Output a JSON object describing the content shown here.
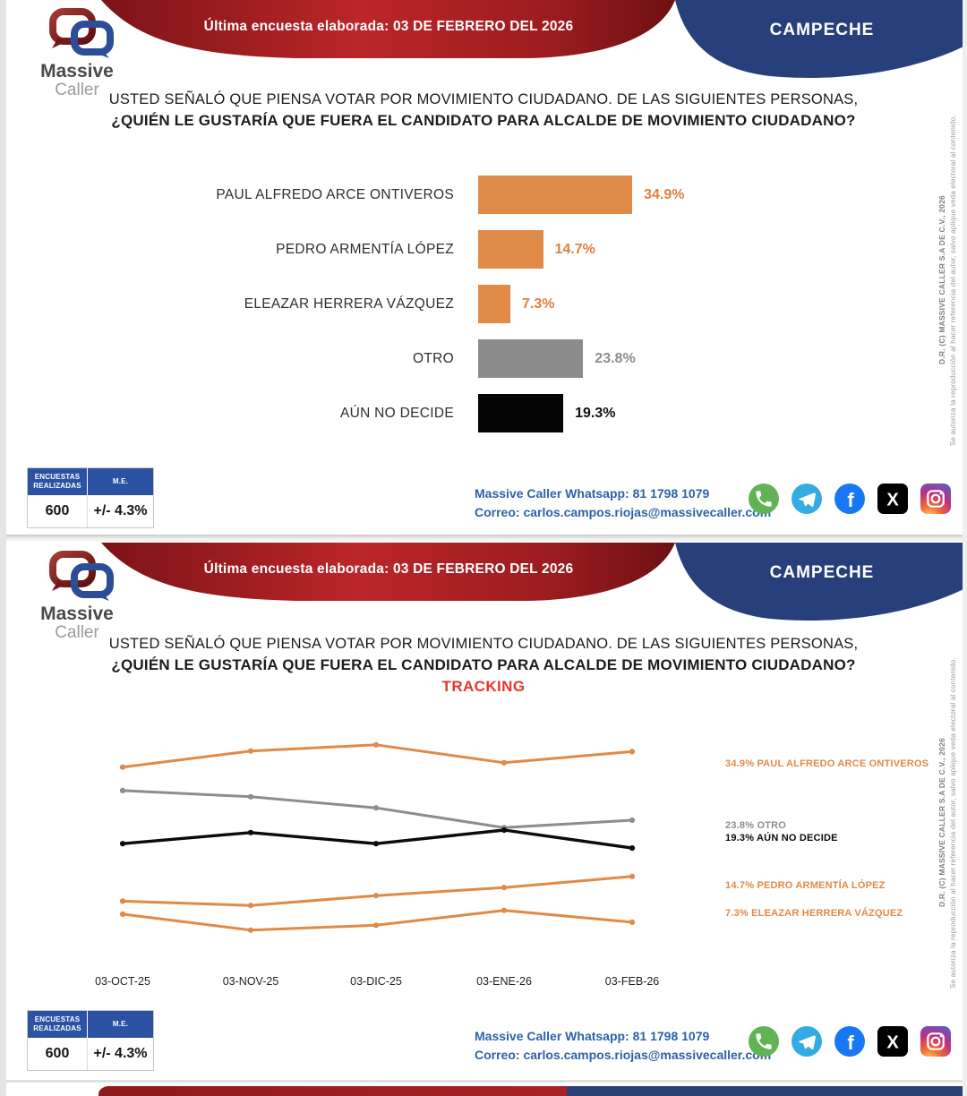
{
  "header": {
    "logo_line1": "Massive",
    "logo_line2": "Caller",
    "banner": "Última encuesta elaborada: 03 DE FEBRERO DEL 2026",
    "region": "CAMPECHE"
  },
  "question": {
    "line1": "USTED SEÑALÓ QUE PIENSA VOTAR POR MOVIMIENTO CIUDADANO. DE LAS SIGUIENTES PERSONAS,",
    "line2": "¿QUIÉN LE GUSTARÍA QUE FUERA EL CANDIDATO PARA ALCALDE DE MOVIMIENTO CIUDADANO?",
    "tracking_label": "TRACKING"
  },
  "stats_table": {
    "col1_header": "ENCUESTAS REALIZADAS",
    "col2_header": "M.E.",
    "col1_value": "600",
    "col2_value": "+/- 4.3%"
  },
  "contact": {
    "line1_label": "Massive Caller Whatsapp:",
    "line1_value": "81 1798 1079",
    "line2_label": "Correo:",
    "line2_value": "carlos.campos.riojas@massivecaller.com"
  },
  "social_icons": [
    "whatsapp",
    "telegram",
    "facebook",
    "x",
    "instagram"
  ],
  "copyright": {
    "line1": "D.R. (C) MASSIVE CALLER S.A DE C.V., 2026",
    "line2": "Se autoriza la reproducción al hacer referencia del autor, salvo aplique veda electoral al contenido."
  },
  "colors": {
    "orange": "#E08A47",
    "gray": "#8C8C8C",
    "black": "#0B0B0B",
    "banner_red": "#B22428",
    "navy": "#27407B",
    "table_header_blue": "#2B52A3",
    "contact_blue": "#2D62A6",
    "tracking_red": "#E8352B"
  },
  "chart_data": [
    {
      "type": "bar",
      "orientation": "horizontal",
      "title": "¿QUIÉN LE GUSTARÍA QUE FUERA EL CANDIDATO PARA ALCALDE DE MOVIMIENTO CIUDADANO?",
      "categories": [
        "PAUL ALFREDO ARCE ONTIVEROS",
        "PEDRO ARMENTÍA LÓPEZ",
        "ELEAZAR HERRERA VÁZQUEZ",
        "OTRO",
        "AÚN NO DECIDE"
      ],
      "values": [
        34.9,
        14.7,
        7.3,
        23.8,
        19.3
      ],
      "value_labels": [
        "34.9%",
        "14.7%",
        "7.3%",
        "23.8%",
        "19.3%"
      ],
      "bar_colors": [
        "#E08A47",
        "#E08A47",
        "#E08A47",
        "#8C8C8C",
        "#050505"
      ],
      "label_colors": [
        "#DC8140",
        "#DC8140",
        "#DC8140",
        "#8D8D8D",
        "#111111"
      ],
      "xlim": [
        0,
        40
      ],
      "grid": false
    },
    {
      "type": "line",
      "title": "TRACKING",
      "x": [
        "03-OCT-25",
        "03-NOV-25",
        "03-DIC-25",
        "03-ENE-26",
        "03-FEB-26"
      ],
      "series": [
        {
          "name": "PAUL ALFREDO ARCE ONTIVEROS",
          "color": "#E08A47",
          "values": [
            32.4,
            35.0,
            36.0,
            33.1,
            34.9
          ],
          "legend_label": "34.9% PAUL ALFREDO ARCE ONTIVEROS"
        },
        {
          "name": "OTRO",
          "color": "#8D8D8D",
          "values": [
            28.6,
            27.6,
            25.8,
            22.6,
            23.8
          ],
          "legend_label": "23.8% OTRO"
        },
        {
          "name": "AÚN NO DECIDE",
          "color": "#0B0B0B",
          "values": [
            20.0,
            21.8,
            20.0,
            22.2,
            19.3
          ],
          "legend_label": "19.3% AÚN NO DECIDE"
        },
        {
          "name": "PEDRO ARMENTÍA LÓPEZ",
          "color": "#E08A47",
          "values": [
            10.7,
            10.0,
            11.6,
            12.9,
            14.7
          ],
          "legend_label": "14.7% PEDRO ARMENTÍA LÓPEZ"
        },
        {
          "name": "ELEAZAR HERRERA VÁZQUEZ",
          "color": "#E08A47",
          "values": [
            8.6,
            6.0,
            6.8,
            9.2,
            7.3
          ],
          "legend_label": "7.3% ELEAZAR HERRERA VÁZQUEZ"
        }
      ],
      "ylim": [
        0,
        40
      ],
      "grid": false,
      "legend_position": "right"
    }
  ]
}
